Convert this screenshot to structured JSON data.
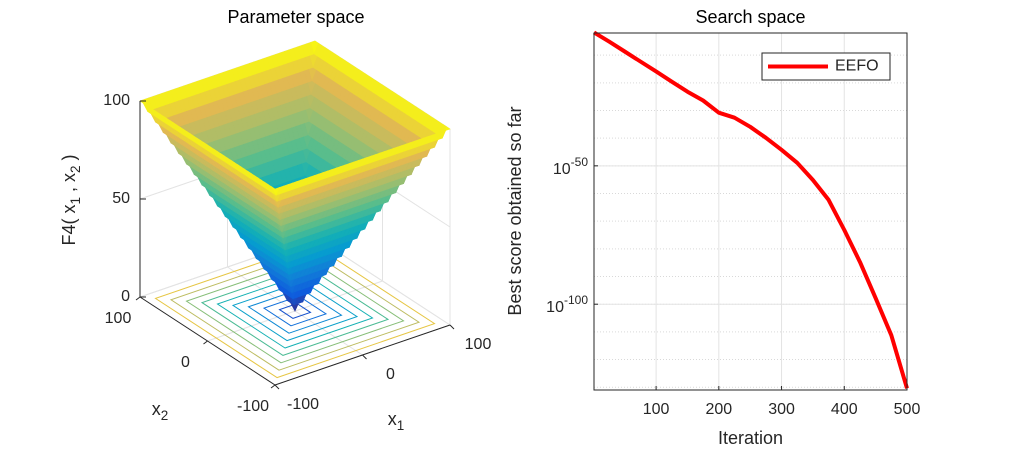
{
  "chart_data": [
    {
      "type": "surface",
      "title": "Parameter space",
      "xlabel": "x1",
      "ylabel": "x2",
      "zlabel": "F4( x1 , x2 )",
      "xlim": [
        -100,
        100
      ],
      "ylim": [
        -100,
        100
      ],
      "zlim": [
        0,
        100
      ],
      "xticks": [
        -100,
        0,
        100
      ],
      "yticks": [
        -100,
        0,
        100
      ],
      "zticks": [
        0,
        50,
        100
      ],
      "grid": true,
      "colormap": "parula"
    },
    {
      "type": "line",
      "title": "Search space",
      "xlabel": "Iteration",
      "ylabel": "Best score obtained so far",
      "yscale": "log",
      "x": [
        1,
        25,
        50,
        75,
        100,
        125,
        150,
        175,
        200,
        225,
        250,
        275,
        300,
        325,
        350,
        375,
        400,
        425,
        450,
        475,
        500
      ],
      "series": [
        {
          "name": "EEFO",
          "color": "#ff0000",
          "values": [
            0.016,
            7.9e-06,
            2e-09,
            5e-13,
            1.3e-16,
            2.5e-20,
            6.3e-24,
            4e-27,
            1.6e-31,
            2.5e-33,
            1.3e-36,
            1.3e-40,
            6.3e-45,
            1.3e-49,
            7.9e-56,
            5e-63,
            6.3e-74,
            1.6e-85,
            1.6e-98,
            6.3e-112,
            4e-131
          ]
        }
      ],
      "xlim": [
        1,
        500
      ],
      "ylim": [
        1e-131,
        0.01
      ],
      "xticks": [
        100,
        200,
        300,
        400,
        500
      ],
      "yticks": [
        {
          "value": 1e-50,
          "label": "10-50"
        },
        {
          "value": 1e-100,
          "label": "10-100"
        }
      ],
      "grid": true,
      "legend": "northeast"
    }
  ]
}
